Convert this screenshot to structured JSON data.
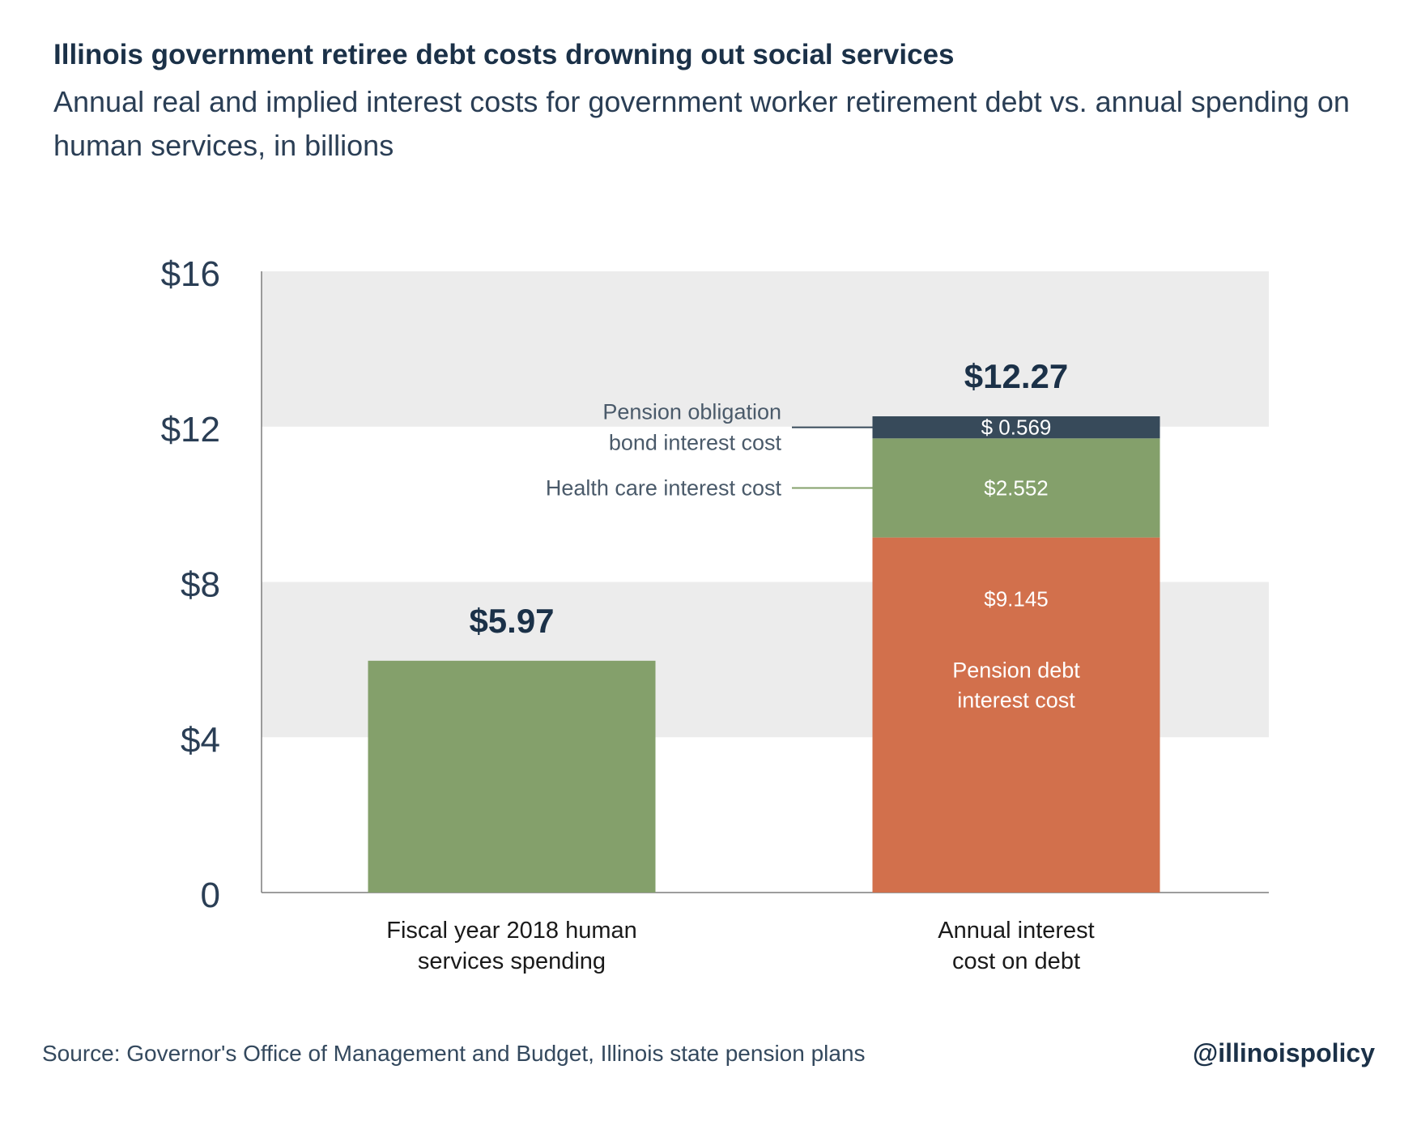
{
  "title": "Illinois government retiree debt costs drowning out social services",
  "subtitle": "Annual real and implied interest costs for government worker retirement debt vs. annual spending on human services, in billions",
  "source": "Source: Governor's Office of Management and Budget, Illinois state pension plans",
  "handle": "@illinoispolicy",
  "colors": {
    "green": "#84a06b",
    "orange": "#d2704c",
    "navy": "#374a5a",
    "band": "#ececec",
    "text": "#1b3148"
  },
  "chart_data": {
    "type": "bar",
    "stacked": true,
    "categories": [
      [
        "Fiscal year 2018 human",
        "services spending"
      ],
      [
        "Annual interest",
        "cost on debt"
      ]
    ],
    "y_ticks": [
      {
        "value": 0,
        "label": "0"
      },
      {
        "value": 4,
        "label": "$4"
      },
      {
        "value": 8,
        "label": "$8"
      },
      {
        "value": 12,
        "label": "$12"
      },
      {
        "value": 16,
        "label": "$16"
      }
    ],
    "ylim": [
      0,
      16
    ],
    "bands": [
      [
        4,
        8
      ],
      [
        12,
        16
      ]
    ],
    "totals": [
      {
        "category": 0,
        "value": 5.97,
        "label": "$5.97"
      },
      {
        "category": 1,
        "value": 12.27,
        "label": "$12.27"
      }
    ],
    "segments": [
      {
        "category": 0,
        "value": 5.97,
        "bottom": 0,
        "color": "green"
      },
      {
        "category": 1,
        "value": 9.145,
        "bottom": 0,
        "color": "orange",
        "value_label": "$9.145",
        "inner_label": [
          "Pension debt",
          "interest cost"
        ]
      },
      {
        "category": 1,
        "value": 2.552,
        "bottom": 9.145,
        "color": "green",
        "value_label": "$2.552",
        "callout": [
          "Health care interest cost"
        ]
      },
      {
        "category": 1,
        "value": 0.569,
        "bottom": 11.697,
        "color": "navy",
        "value_label": "$ 0.569",
        "callout": [
          "Pension obligation",
          "bond interest cost"
        ]
      }
    ]
  }
}
